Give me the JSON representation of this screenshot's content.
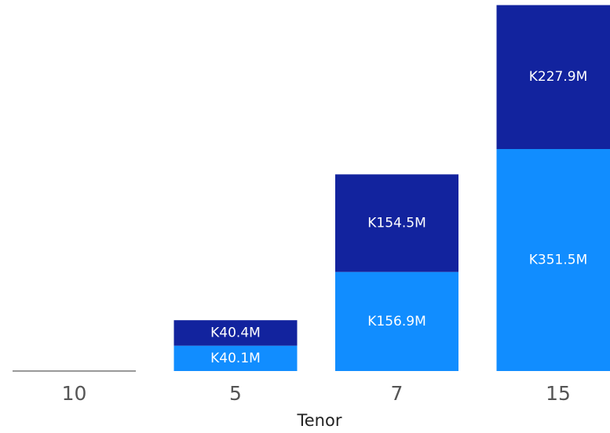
{
  "chart_data": {
    "type": "bar",
    "stacked": true,
    "categories": [
      "10",
      "5",
      "7",
      "15"
    ],
    "xlabel": "Tenor",
    "ylabel": "",
    "grid": false,
    "ylim": [
      0,
      580
    ],
    "series": [
      {
        "color": "#118dff",
        "values": [
          0,
          40.1,
          156.9,
          351.5
        ],
        "labels": [
          "",
          "K40.1M",
          "K156.9M",
          "K351.5M"
        ]
      },
      {
        "color": "#12239e",
        "values": [
          0,
          40.4,
          154.5,
          227.9
        ],
        "labels": [
          "",
          "K40.4M",
          "K154.5M",
          "K227.9M"
        ]
      }
    ],
    "baseline_color": "#333333"
  }
}
